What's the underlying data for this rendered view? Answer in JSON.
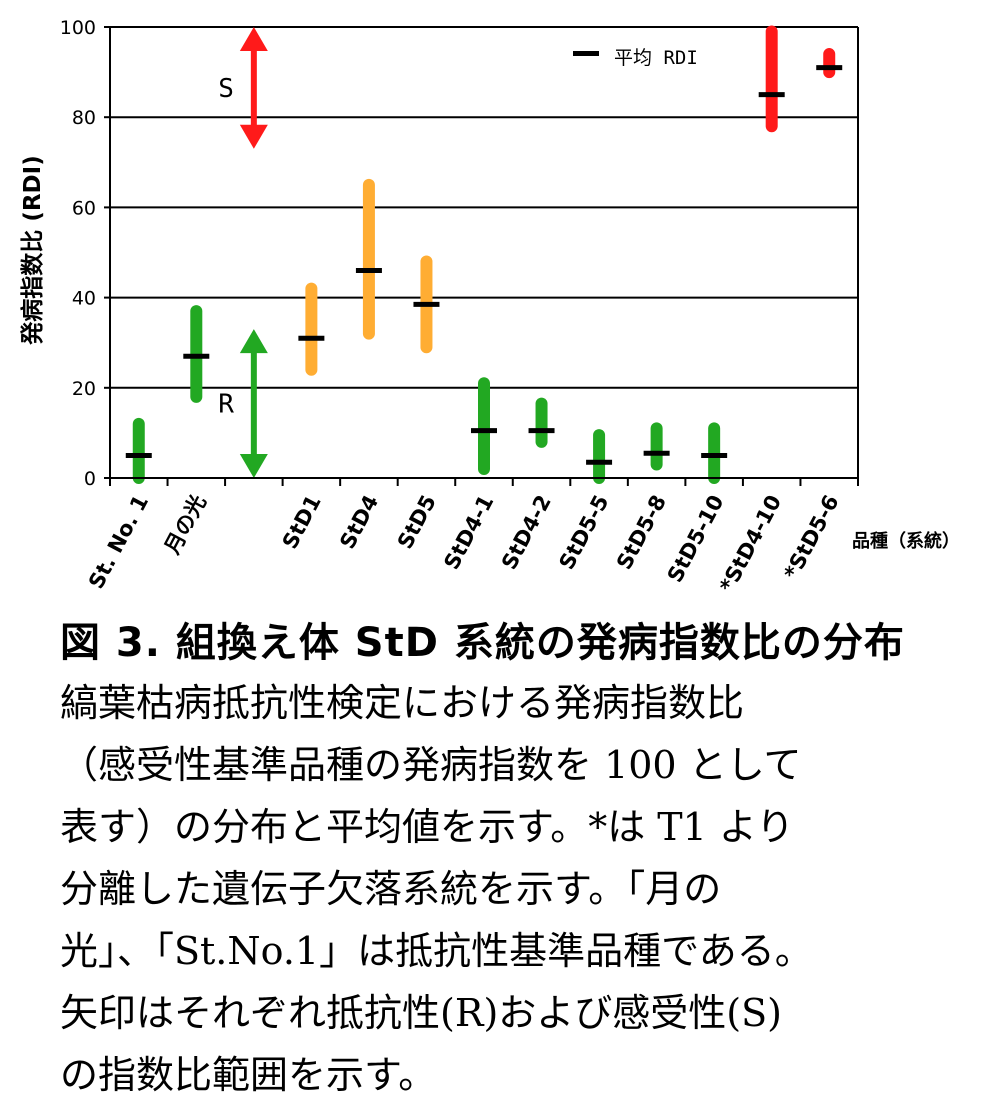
{
  "chart_data": {
    "type": "scatter",
    "title": "",
    "ylabel": "発病指数比 (RDI)",
    "xlabel": "品種（系統）",
    "ylim": [
      0,
      100
    ],
    "yticks": [
      0,
      20,
      40,
      60,
      80,
      100
    ],
    "grid": true,
    "legend": {
      "position": "top-right",
      "label": "平均 RDI"
    },
    "categories": [
      "St. No. 1",
      "月の光",
      "",
      "StD1",
      "StD4",
      "StD5",
      "StD4-1",
      "StD4-2",
      "StD5-5",
      "StD5-8",
      "StD5-10",
      "*StD4-10",
      "*StD5-6"
    ],
    "ranges": [
      {
        "category": "St. No. 1",
        "min": 0,
        "max": 12,
        "mean": 5,
        "color": "#22a822"
      },
      {
        "category": "月の光",
        "min": 18,
        "max": 37,
        "mean": 27,
        "color": "#22a822"
      },
      {
        "category": "StD1",
        "min": 24,
        "max": 42,
        "mean": 31,
        "color": "#ffad33"
      },
      {
        "category": "StD4",
        "min": 32,
        "max": 65,
        "mean": 46,
        "color": "#ffad33"
      },
      {
        "category": "StD5",
        "min": 29,
        "max": 48,
        "mean": 38.5,
        "color": "#ffad33"
      },
      {
        "category": "StD4-1",
        "min": 2,
        "max": 21,
        "mean": 10.5,
        "color": "#22a822"
      },
      {
        "category": "StD4-2",
        "min": 8,
        "max": 16.5,
        "mean": 10.5,
        "color": "#22a822"
      },
      {
        "category": "StD5-5",
        "min": 0,
        "max": 9.5,
        "mean": 3.5,
        "color": "#22a822"
      },
      {
        "category": "StD5-8",
        "min": 3,
        "max": 11,
        "mean": 5.5,
        "color": "#22a822"
      },
      {
        "category": "StD5-10",
        "min": 0,
        "max": 11,
        "mean": 5,
        "color": "#22a822"
      },
      {
        "category": "*StD4-10",
        "min": 78,
        "max": 99,
        "mean": 85,
        "color": "#ff1a1a"
      },
      {
        "category": "*StD5-6",
        "min": 90,
        "max": 94,
        "mean": 91,
        "color": "#ff1a1a"
      }
    ],
    "annotations": [
      {
        "label": "S",
        "from": 73,
        "to": 100,
        "color": "#ff1a1a"
      },
      {
        "label": "R",
        "from": 0,
        "to": 33,
        "color": "#22a822"
      }
    ]
  },
  "caption": {
    "title": "図 3. 組換え体 StD 系統の発病指数比の分布",
    "lines": [
      "縞葉枯病抵抗性検定における発病指数比",
      "（感受性基準品種の発病指数を 100 として",
      "表す）の分布と平均値を示す。*は T1 より",
      "分離した遺伝子欠落系統を示す。「月の",
      "光」、「St.No.1」は抵抗性基準品種である。",
      "矢印はそれぞれ抵抗性(R)および感受性(S)",
      "の指数比範囲を示す。"
    ]
  }
}
